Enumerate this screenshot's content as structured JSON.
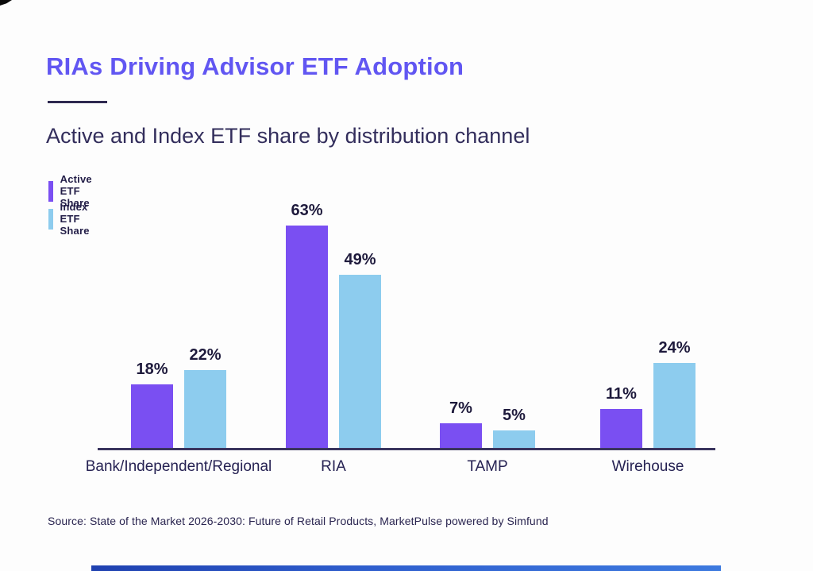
{
  "page": {
    "title": "RIAs Driving Advisor ETF Adoption",
    "subtitle": "Active and Index ETF share by distribution channel",
    "source": "Source: State of the Market 2026-2030: Future of Retail Products, MarketPulse powered by Simfund"
  },
  "legend": [
    {
      "label": "Active ETF Share",
      "color": "#7a4ff2"
    },
    {
      "label": "Index ETF Share",
      "color": "#8dccee"
    }
  ],
  "colors": {
    "title_accent": "#6156f2",
    "active_bar": "#7a4ff2",
    "index_bar": "#8dccee",
    "dark_text": "#262253",
    "axis": "#3a355e",
    "footer_bar_start": "#1f41b0",
    "footer_bar_end": "#3d7adf"
  },
  "chart_data": {
    "type": "bar",
    "title": "Active and Index ETF share by distribution channel",
    "categories": [
      "Bank/Independent/Regional",
      "RIA",
      "TAMP",
      "Wirehouse"
    ],
    "series": [
      {
        "name": "Active ETF Share",
        "color": "#7a4ff2",
        "values": [
          18,
          63,
          7,
          11
        ]
      },
      {
        "name": "Index ETF Share",
        "color": "#8dccee",
        "values": [
          22,
          49,
          5,
          24
        ]
      }
    ],
    "value_suffix": "%",
    "data_labels": true,
    "grid": false,
    "xlabel": "",
    "ylabel": "",
    "ylim": [
      0,
      70
    ],
    "legend_position": "top-left"
  }
}
